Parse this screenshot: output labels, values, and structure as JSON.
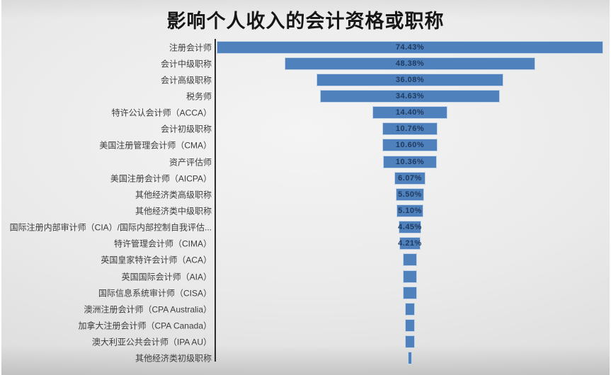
{
  "page": {
    "title": "影响个人收入的会计资格或职称"
  },
  "chart_data": {
    "type": "bar",
    "subtype": "horizontal-centered-funnel",
    "title": "影响个人收入的会计资格或职称",
    "value_unit": "percent",
    "xlim": [
      0,
      74.43
    ],
    "grid": false,
    "legend": false,
    "bar_color": "#4f81bd",
    "bar_border_color": "#ebf1f8",
    "value_label_color": "#1f3a5f",
    "axis_line_color": "#2b2b2b",
    "category_label_color": "#3d3d3d",
    "categories": [
      "注册会计师",
      "会计中级职称",
      "会计高级职称",
      "税务师",
      "特许公认会计师（ACCA）",
      "会计初级职称",
      "美国注册管理会计师（CMA）",
      "资产评估师",
      "美国注册会计师（AICPA）",
      "其他经济类高级职称",
      "其他经济类中级职称",
      "国际注册内部审计师（CIA）/国际内部控制自我评估...",
      "特许管理会计师（CIMA）",
      "英国皇家特许会计师（ACA）",
      "英国国际会计师（AIA）",
      "国际信息系统审计师（CISA）",
      "澳洲注册会计师（CPA Australia）",
      "加拿大注册会计师（CPA Canada）",
      "澳大利亚公共会计师（IPA AU）",
      "其他经济类初级职称"
    ],
    "values": [
      74.43,
      48.38,
      36.08,
      34.63,
      14.4,
      10.76,
      10.6,
      10.36,
      6.07,
      5.5,
      5.1,
      4.45,
      4.21,
      2.8,
      2.7,
      2.6,
      1.9,
      1.8,
      1.8,
      0.9
    ],
    "data_labels": [
      "74.43%",
      "48.38%",
      "36.08%",
      "34.63%",
      "14.40%",
      "10.76%",
      "10.60%",
      "10.36%",
      "6.07%",
      "5.50%",
      "5.10%",
      "4.45%",
      "4.21%",
      "",
      "",
      "",
      "",
      "",
      "",
      ""
    ]
  }
}
